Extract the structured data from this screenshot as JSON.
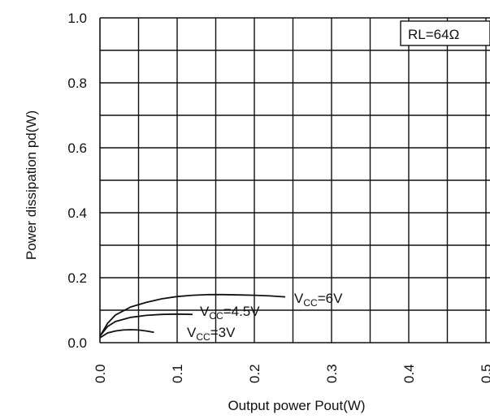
{
  "chart_data": {
    "type": "line",
    "xlabel": "Output power  Pout(W)",
    "ylabel": "Power dissipation  pd(W)",
    "xlim": [
      0.0,
      0.5
    ],
    "ylim": [
      0.0,
      1.0
    ],
    "xticks": [
      "0.0",
      "0.1",
      "0.2",
      "0.3",
      "0.4",
      "0.5"
    ],
    "yticks": [
      "0.0",
      "0.2",
      "0.4",
      "0.6",
      "0.8",
      "1.0"
    ],
    "grid": true,
    "annotation": {
      "text": "RL=64Ω",
      "position": "top-right"
    },
    "series": [
      {
        "name": "VCC=6V",
        "label_main": "V",
        "label_sub": "CC",
        "label_rest": "=6V",
        "x": [
          0.0,
          0.01,
          0.02,
          0.04,
          0.06,
          0.08,
          0.1,
          0.12,
          0.14,
          0.16,
          0.18,
          0.2,
          0.22,
          0.24
        ],
        "y": [
          0.02,
          0.06,
          0.085,
          0.11,
          0.124,
          0.135,
          0.142,
          0.146,
          0.148,
          0.148,
          0.147,
          0.146,
          0.144,
          0.141
        ]
      },
      {
        "name": "VCC=4.5V",
        "label_main": "V",
        "label_sub": "CC",
        "label_rest": "=4.5V",
        "x": [
          0.0,
          0.01,
          0.02,
          0.04,
          0.06,
          0.08,
          0.1,
          0.12
        ],
        "y": [
          0.02,
          0.05,
          0.065,
          0.078,
          0.084,
          0.087,
          0.088,
          0.087
        ]
      },
      {
        "name": "VCC=3V",
        "label_main": "V",
        "label_sub": "CC",
        "label_rest": "=3V",
        "x": [
          0.0,
          0.01,
          0.02,
          0.03,
          0.04,
          0.05,
          0.06,
          0.07
        ],
        "y": [
          0.015,
          0.03,
          0.036,
          0.039,
          0.04,
          0.039,
          0.036,
          0.032
        ]
      }
    ]
  }
}
